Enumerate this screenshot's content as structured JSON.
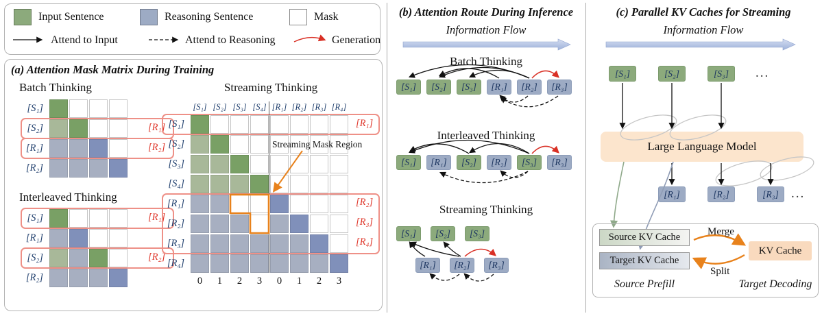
{
  "colors": {
    "cell": {
      "G": "#79a065",
      "g": "#a8b899",
      "B": "#8090ba",
      "b": "#a7afc1",
      "W": "#ffffff"
    },
    "input_green": "#8caa7c",
    "reasoning_blue": "#9dabc4",
    "mask_white": "#ffffff",
    "generation_red": "#d93025",
    "mask_region_orange": "#e8821c",
    "gen_box_red": "#ee9087",
    "flow_arrow_blue": "#9db1da",
    "llm_peach": "#fce5cd",
    "kv_peach": "#f9dabe",
    "label_navy": "#21406e"
  },
  "legend": {
    "input_label": "Input Sentence",
    "reasoning_label": "Reasoning Sentence",
    "mask_label": "Mask",
    "attend_input_label": "Attend to Input",
    "attend_reasoning_label": "Attend to Reasoning",
    "generation_label": "Generation"
  },
  "panel_a": {
    "title": "(a) Attention Mask Matrix During Training",
    "batch": {
      "heading": "Batch Thinking",
      "row_labels": [
        "[S₁]",
        "[S₂]",
        "[R₁]",
        "[R₂]"
      ],
      "cells": [
        [
          "G",
          "W",
          "W",
          "W"
        ],
        [
          "g",
          "G",
          "W",
          "W"
        ],
        [
          "b",
          "b",
          "B",
          "W"
        ],
        [
          "b",
          "b",
          "b",
          "B"
        ]
      ],
      "gen_labels": [
        "[R₁]",
        "[R₂]"
      ]
    },
    "interleaved": {
      "heading": "Interleaved Thinking",
      "row_labels": [
        "[S₁]",
        "[R₁]",
        "[S₂]",
        "[R₂]"
      ],
      "cells": [
        [
          "G",
          "W",
          "W",
          "W"
        ],
        [
          "b",
          "B",
          "W",
          "W"
        ],
        [
          "g",
          "b",
          "G",
          "W"
        ],
        [
          "b",
          "b",
          "b",
          "B"
        ]
      ],
      "gen_labels": [
        "[R₁]",
        "[R₂]"
      ]
    },
    "streaming": {
      "heading": "Streaming Thinking",
      "col_labels": [
        "[S₁]",
        "[S₂]",
        "[S₃]",
        "[S₄]",
        "[R₁]",
        "[R₂]",
        "[R₃]",
        "[R₄]"
      ],
      "row_labels": [
        "[S₁]",
        "[S₂]",
        "[S₃]",
        "[S₄]",
        "[R₁]",
        "[R₂]",
        "[R₃]",
        "[R₄]"
      ],
      "cells": [
        [
          "G",
          "W",
          "W",
          "W",
          "W",
          "W",
          "W",
          "W"
        ],
        [
          "g",
          "G",
          "W",
          "W",
          "W",
          "W",
          "W",
          "W"
        ],
        [
          "g",
          "g",
          "G",
          "W",
          "W",
          "W",
          "W",
          "W"
        ],
        [
          "g",
          "g",
          "g",
          "G",
          "W",
          "W",
          "W",
          "W"
        ],
        [
          "b",
          "b",
          "W",
          "W",
          "B",
          "W",
          "W",
          "W"
        ],
        [
          "b",
          "b",
          "b",
          "W",
          "b",
          "B",
          "W",
          "W"
        ],
        [
          "b",
          "b",
          "b",
          "b",
          "b",
          "b",
          "B",
          "W"
        ],
        [
          "b",
          "b",
          "b",
          "b",
          "b",
          "b",
          "b",
          "B"
        ]
      ],
      "col_numbers": [
        "0",
        "1",
        "2",
        "3",
        "0",
        "1",
        "2",
        "3"
      ],
      "mask_region_label": "Streaming Mask Region",
      "gen_labels": [
        "[R₁]",
        "[R₂]",
        "[R₃]",
        "[R₄]"
      ]
    }
  },
  "panel_b": {
    "title": "(b) Attention Route During Inference",
    "flow_label": "Information Flow",
    "batch": {
      "heading": "Batch Thinking",
      "tokens": [
        "[S₁]",
        "[S₂]",
        "[S₃]",
        "[R₁]",
        "[R₂]",
        "[R₃]"
      ]
    },
    "interleaved": {
      "heading": "Interleaved Thinking",
      "tokens": [
        "[S₁]",
        "[R₁]",
        "[S₂]",
        "[R₂]",
        "[S₃]",
        "[R₃]"
      ]
    },
    "streaming": {
      "heading": "Streaming Thinking",
      "s_tokens": [
        "[S₁]",
        "[S₂]",
        "[S₃]"
      ],
      "r_tokens": [
        "[R₁]",
        "[R₂]",
        "[R₃]"
      ]
    }
  },
  "panel_c": {
    "title": "(c) Parallel KV Caches for Streaming",
    "flow_label": "Information Flow",
    "s_tokens": [
      "[S₁]",
      "[S₂]",
      "[S₃]"
    ],
    "s_ellipsis": "...",
    "llm_label": "Large Language Model",
    "r_tokens": [
      "[R₁]",
      "[R₂]",
      "[R₃]"
    ],
    "r_ellipsis": "...",
    "source_cache_label": "Source KV Cache",
    "target_cache_label": "Target KV Cache",
    "merge_label": "Merge",
    "split_label": "Split",
    "kv_cache_label": "KV Cache",
    "source_prefill_label": "Source Prefill",
    "target_decoding_label": "Target Decoding"
  }
}
